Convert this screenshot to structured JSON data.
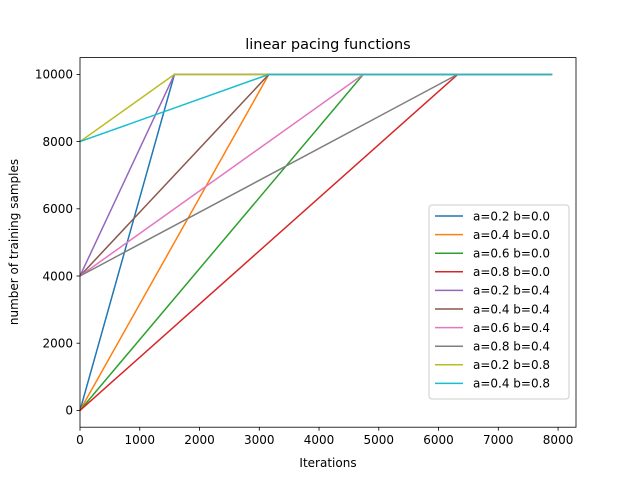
{
  "chart_data": {
    "type": "line",
    "title": "linear pacing functions",
    "xlabel": "Iterations",
    "ylabel": "number of training samples",
    "xlim": [
      0,
      8300
    ],
    "ylim": [
      -500,
      10500
    ],
    "xticks": [
      0,
      1000,
      2000,
      3000,
      4000,
      5000,
      6000,
      7000,
      8000
    ],
    "yticks": [
      0,
      2000,
      4000,
      6000,
      8000,
      10000
    ],
    "grid": false,
    "legend_position": "lower-right",
    "series": [
      {
        "name": "a=0.2 b=0.0",
        "color": "#1f77b4",
        "x": [
          0,
          1580,
          7900
        ],
        "y": [
          0,
          10000,
          10000
        ]
      },
      {
        "name": "a=0.4 b=0.0",
        "color": "#ff7f0e",
        "x": [
          0,
          3160,
          7900
        ],
        "y": [
          0,
          10000,
          10000
        ]
      },
      {
        "name": "a=0.6 b=0.0",
        "color": "#2ca02c",
        "x": [
          0,
          4740,
          7900
        ],
        "y": [
          0,
          10000,
          10000
        ]
      },
      {
        "name": "a=0.8 b=0.0",
        "color": "#d62728",
        "x": [
          0,
          6320,
          7900
        ],
        "y": [
          0,
          10000,
          10000
        ]
      },
      {
        "name": "a=0.2 b=0.4",
        "color": "#9467bd",
        "x": [
          0,
          1580,
          7900
        ],
        "y": [
          4000,
          10000,
          10000
        ]
      },
      {
        "name": "a=0.4 b=0.4",
        "color": "#8c564b",
        "x": [
          0,
          3160,
          7900
        ],
        "y": [
          4000,
          10000,
          10000
        ]
      },
      {
        "name": "a=0.6 b=0.4",
        "color": "#e377c2",
        "x": [
          0,
          4740,
          7900
        ],
        "y": [
          4000,
          10000,
          10000
        ]
      },
      {
        "name": "a=0.8 b=0.4",
        "color": "#7f7f7f",
        "x": [
          0,
          6320,
          7900
        ],
        "y": [
          4000,
          10000,
          10000
        ]
      },
      {
        "name": "a=0.2 b=0.8",
        "color": "#bcbd22",
        "x": [
          0,
          1580,
          7900
        ],
        "y": [
          8000,
          10000,
          10000
        ]
      },
      {
        "name": "a=0.4 b=0.8",
        "color": "#17becf",
        "x": [
          0,
          3160,
          7900
        ],
        "y": [
          8000,
          10000,
          10000
        ]
      }
    ]
  }
}
